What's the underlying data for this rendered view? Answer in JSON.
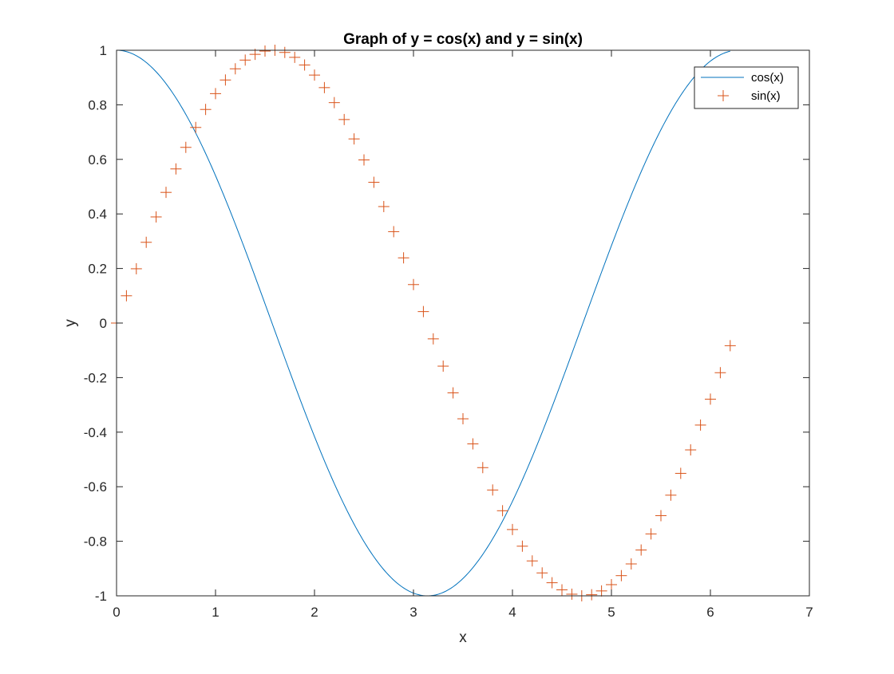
{
  "chart_data": {
    "type": "line",
    "title": "Graph of y = cos(x) and y = sin(x)",
    "xlabel": "x",
    "ylabel": "y",
    "xlim": [
      0,
      7
    ],
    "ylim": [
      -1,
      1
    ],
    "x_ticks": [
      0,
      1,
      2,
      3,
      4,
      5,
      6,
      7
    ],
    "x_tick_labels": [
      "0",
      "1",
      "2",
      "3",
      "4",
      "5",
      "6",
      "7"
    ],
    "y_ticks": [
      -1,
      -0.8,
      -0.6,
      -0.4,
      -0.2,
      0,
      0.2,
      0.4,
      0.6,
      0.8,
      1
    ],
    "y_tick_labels": [
      "-1",
      "-0.8",
      "-0.6",
      "-0.4",
      "-0.2",
      "0",
      "0.2",
      "0.4",
      "0.6",
      "0.8",
      "1"
    ],
    "grid": false,
    "legend_position": "top-right",
    "x": [
      0,
      0.1,
      0.2,
      0.3,
      0.4,
      0.5,
      0.6,
      0.7,
      0.8,
      0.9,
      1.0,
      1.1,
      1.2,
      1.3,
      1.4,
      1.5,
      1.6,
      1.7,
      1.8,
      1.9,
      2.0,
      2.1,
      2.2,
      2.3,
      2.4,
      2.5,
      2.6,
      2.7,
      2.8,
      2.9,
      3.0,
      3.1,
      3.2,
      3.3,
      3.4,
      3.5,
      3.6,
      3.7,
      3.8,
      3.9,
      4.0,
      4.1,
      4.2,
      4.3,
      4.4,
      4.5,
      4.6,
      4.7,
      4.8,
      4.9,
      5.0,
      5.1,
      5.2,
      5.3,
      5.4,
      5.5,
      5.6,
      5.7,
      5.8,
      5.9,
      6.0,
      6.1,
      6.2
    ],
    "series": [
      {
        "name": "cos(x)",
        "style": "line",
        "color": "#0072BD",
        "values": [
          1.0,
          0.995,
          0.98,
          0.955,
          0.921,
          0.878,
          0.825,
          0.765,
          0.697,
          0.622,
          0.54,
          0.454,
          0.362,
          0.267,
          0.17,
          0.071,
          -0.029,
          -0.129,
          -0.227,
          -0.323,
          -0.416,
          -0.505,
          -0.589,
          -0.666,
          -0.737,
          -0.801,
          -0.857,
          -0.904,
          -0.942,
          -0.971,
          -0.99,
          -0.999,
          -0.998,
          -0.987,
          -0.967,
          -0.936,
          -0.897,
          -0.848,
          -0.791,
          -0.726,
          -0.654,
          -0.575,
          -0.49,
          -0.401,
          -0.307,
          -0.211,
          -0.112,
          -0.012,
          0.087,
          0.186,
          0.284,
          0.378,
          0.469,
          0.554,
          0.635,
          0.709,
          0.776,
          0.835,
          0.886,
          0.927,
          0.96,
          0.983,
          0.997
        ]
      },
      {
        "name": "sin(x)",
        "style": "plus-marker",
        "color": "#D95319",
        "values": [
          0.0,
          0.1,
          0.199,
          0.296,
          0.389,
          0.479,
          0.565,
          0.644,
          0.717,
          0.783,
          0.841,
          0.891,
          0.932,
          0.964,
          0.985,
          0.997,
          1.0,
          0.992,
          0.974,
          0.946,
          0.909,
          0.863,
          0.808,
          0.746,
          0.675,
          0.598,
          0.516,
          0.427,
          0.335,
          0.239,
          0.141,
          0.042,
          -0.058,
          -0.158,
          -0.256,
          -0.351,
          -0.443,
          -0.53,
          -0.612,
          -0.688,
          -0.757,
          -0.818,
          -0.872,
          -0.916,
          -0.952,
          -0.978,
          -0.994,
          -1.0,
          -0.996,
          -0.982,
          -0.959,
          -0.926,
          -0.883,
          -0.832,
          -0.773,
          -0.706,
          -0.631,
          -0.551,
          -0.465,
          -0.374,
          -0.279,
          -0.182,
          -0.083
        ]
      }
    ]
  }
}
